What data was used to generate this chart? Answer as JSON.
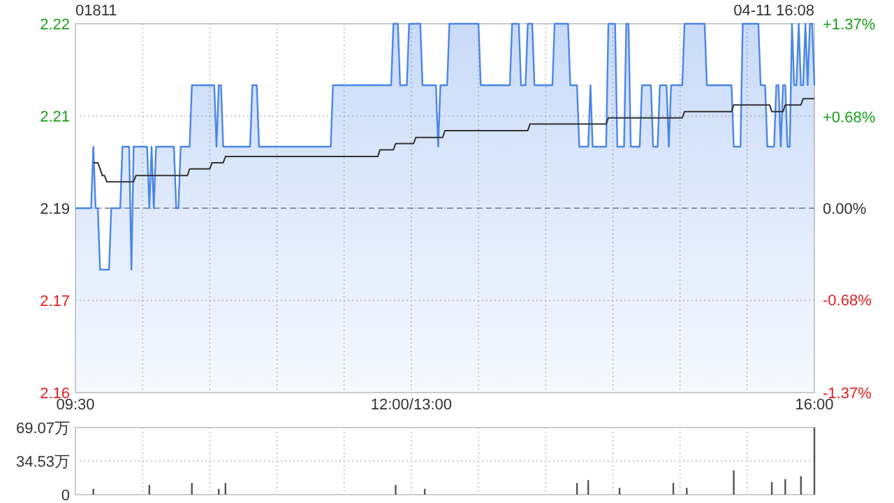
{
  "chart_data": [
    {
      "type": "area",
      "title": "01811",
      "annotations": [
        "04-11 16:08"
      ],
      "categories": [
        "09:30",
        null,
        null,
        null,
        null,
        null,
        null,
        null,
        null,
        null,
        null,
        null,
        null,
        null,
        null,
        null,
        null,
        null,
        null,
        null,
        null,
        null,
        null,
        null,
        null,
        null,
        null,
        null,
        null,
        null,
        null,
        null,
        null,
        null,
        null,
        null,
        null,
        null,
        null,
        null,
        null,
        null,
        null,
        null,
        null,
        null,
        null,
        null,
        null,
        null,
        null,
        null,
        null,
        null,
        null,
        null,
        null,
        null,
        null,
        null,
        null,
        null,
        null,
        null,
        null,
        null,
        null,
        null,
        null,
        null,
        null,
        null,
        null,
        null,
        null,
        null,
        null,
        null,
        null,
        null,
        null,
        null,
        null,
        null,
        null,
        null,
        null,
        null,
        null,
        null,
        null,
        null,
        null,
        null,
        null,
        null,
        null,
        null,
        null,
        null,
        null,
        null,
        null,
        null,
        null,
        null,
        null,
        null,
        null,
        null,
        null,
        null,
        null,
        null,
        null,
        null,
        null,
        null,
        null,
        null,
        null,
        null,
        null,
        null,
        null,
        null,
        null,
        null,
        null,
        null,
        null,
        null,
        null,
        null,
        null,
        null,
        null,
        null,
        null,
        null,
        null,
        null,
        null,
        null,
        null,
        null,
        null,
        null,
        null,
        null,
        "12:00/13:00",
        null,
        null,
        null,
        null,
        null,
        null,
        null,
        null,
        null,
        null,
        null,
        null,
        null,
        null,
        null,
        null,
        null,
        null,
        null,
        null,
        null,
        null,
        null,
        null,
        null,
        null,
        null,
        null,
        null,
        null,
        null,
        null,
        null,
        null,
        null,
        null,
        null,
        null,
        null,
        null,
        null,
        null,
        null,
        null,
        null,
        null,
        null,
        null,
        null,
        null,
        null,
        null,
        null,
        null,
        null,
        null,
        null,
        null,
        null,
        null,
        null,
        null,
        null,
        null,
        null,
        null,
        null,
        null,
        null,
        null,
        null,
        null,
        null,
        null,
        null,
        null,
        null,
        null,
        null,
        null,
        null,
        null,
        null,
        null,
        null,
        null,
        null,
        null,
        null,
        null,
        null,
        null,
        null,
        null,
        null,
        null,
        null,
        null,
        null,
        null,
        null,
        null,
        null,
        null,
        null,
        null,
        null,
        null,
        null,
        null,
        null,
        null,
        null,
        null,
        null,
        null,
        null,
        null,
        null,
        null,
        null,
        null,
        null,
        null,
        null,
        null,
        null,
        null,
        null,
        null,
        null,
        null,
        null,
        null,
        null,
        null,
        null,
        null,
        null,
        null,
        null,
        null,
        null,
        null,
        null,
        null,
        null,
        null,
        null,
        null,
        null,
        null,
        null,
        null,
        null,
        null,
        null,
        null,
        null,
        null,
        null,
        null,
        null,
        null,
        null,
        null,
        null,
        null,
        null,
        null,
        null,
        null,
        null,
        null,
        null,
        null,
        null,
        null,
        null,
        "16:00"
      ],
      "ylim": [
        2.16,
        2.22
      ],
      "yticks": [
        2.22,
        {
          "value": 2.205,
          "label": "2.21"
        },
        2.19,
        {
          "value": 2.175,
          "label": "2.17"
        },
        2.16
      ],
      "y2lim": [
        -1.37,
        1.37
      ],
      "y2ticks": [
        {
          "value": 1.37,
          "label": "+1.37%"
        },
        {
          "value": 0.68,
          "label": "+0.68%"
        },
        {
          "value": 0,
          "label": "0.00%"
        },
        {
          "value": -0.68,
          "label": "-0.68%"
        },
        {
          "value": -1.37,
          "label": "-1.37%"
        }
      ],
      "grid": true,
      "ref_lines": [
        {
          "axis": "y",
          "value": 2.19,
          "line_style": "dashed",
          "color": "#999999"
        }
      ],
      "series": [
        {
          "color": "#4a86e8",
          "values": [
            2.19,
            2.19,
            2.19,
            2.19,
            2.19,
            2.19,
            2.19,
            2.19,
            2.2,
            2.19,
            2.19,
            2.18,
            2.18,
            2.18,
            2.18,
            2.18,
            2.19,
            2.19,
            2.19,
            2.19,
            2.19,
            2.2,
            2.2,
            2.2,
            2.2,
            2.18,
            2.2,
            2.2,
            2.2,
            2.2,
            2.2,
            2.2,
            2.2,
            2.19,
            2.2,
            2.19,
            2.2,
            2.2,
            2.2,
            2.2,
            2.2,
            2.2,
            2.2,
            2.2,
            2.2,
            2.19,
            2.19,
            2.2,
            2.2,
            2.2,
            2.2,
            2.2,
            2.21,
            2.21,
            2.21,
            2.21,
            2.21,
            2.21,
            2.21,
            2.21,
            2.21,
            2.21,
            2.21,
            2.2,
            2.21,
            2.21,
            2.2,
            2.2,
            2.2,
            2.2,
            2.2,
            2.2,
            2.2,
            2.2,
            2.2,
            2.2,
            2.2,
            2.2,
            2.2,
            2.21,
            2.21,
            2.21,
            2.2,
            2.2,
            2.2,
            2.2,
            2.2,
            2.2,
            2.2,
            2.2,
            2.2,
            2.2,
            2.2,
            2.2,
            2.2,
            2.2,
            2.2,
            2.2,
            2.2,
            2.2,
            2.2,
            2.2,
            2.2,
            2.2,
            2.2,
            2.2,
            2.2,
            2.2,
            2.2,
            2.2,
            2.2,
            2.2,
            2.2,
            2.2,
            2.2,
            2.21,
            2.21,
            2.21,
            2.21,
            2.21,
            2.21,
            2.21,
            2.21,
            2.21,
            2.21,
            2.21,
            2.21,
            2.21,
            2.21,
            2.21,
            2.21,
            2.21,
            2.21,
            2.21,
            2.21,
            2.21,
            2.21,
            2.21,
            2.21,
            2.21,
            2.21,
            2.21,
            2.22,
            2.22,
            2.22,
            2.21,
            2.21,
            2.21,
            2.21,
            2.22,
            2.22,
            2.22,
            2.22,
            2.22,
            2.22,
            2.21,
            2.21,
            2.21,
            2.21,
            2.21,
            2.21,
            2.21,
            2.2,
            2.21,
            2.21,
            2.21,
            2.21,
            2.22,
            2.22,
            2.22,
            2.22,
            2.22,
            2.22,
            2.22,
            2.22,
            2.22,
            2.22,
            2.22,
            2.22,
            2.22,
            2.22,
            2.21,
            2.21,
            2.21,
            2.21,
            2.21,
            2.21,
            2.21,
            2.21,
            2.21,
            2.21,
            2.21,
            2.21,
            2.21,
            2.21,
            2.22,
            2.22,
            2.22,
            2.22,
            2.21,
            2.21,
            2.21,
            2.22,
            2.22,
            2.22,
            2.21,
            2.21,
            2.21,
            2.21,
            2.21,
            2.21,
            2.21,
            2.21,
            2.21,
            2.22,
            2.22,
            2.22,
            2.22,
            2.22,
            2.22,
            2.22,
            2.21,
            2.21,
            2.21,
            2.21,
            2.2,
            2.2,
            2.2,
            2.2,
            2.2,
            2.21,
            2.2,
            2.2,
            2.2,
            2.2,
            2.2,
            2.2,
            2.2,
            2.22,
            2.22,
            2.22,
            2.22,
            2.2,
            2.2,
            2.2,
            2.2,
            2.22,
            2.22,
            2.2,
            2.2,
            2.2,
            2.2,
            2.2,
            2.21,
            2.21,
            2.21,
            2.21,
            2.21,
            2.2,
            2.2,
            2.2,
            2.21,
            2.21,
            2.21,
            2.21,
            2.2,
            2.21,
            2.21,
            2.21,
            2.21,
            2.21,
            2.21,
            2.22,
            2.22,
            2.22,
            2.22,
            2.22,
            2.22,
            2.22,
            2.22,
            2.22,
            2.22,
            2.21,
            2.21,
            2.21,
            2.21,
            2.21,
            2.21,
            2.21,
            2.21,
            2.21,
            2.21,
            2.21,
            2.21,
            2.2,
            2.2,
            2.2,
            2.2,
            2.22,
            2.22,
            2.22,
            2.22,
            2.22,
            2.22,
            2.22,
            2.22,
            2.21,
            2.21,
            2.21,
            2.2,
            2.2,
            2.2,
            2.2,
            2.21,
            2.21,
            2.2,
            2.21,
            2.21,
            2.2,
            2.2,
            2.22,
            2.21,
            2.21,
            2.22,
            2.21,
            2.21,
            2.22,
            2.21,
            2.22,
            2.22,
            2.21
          ]
        },
        {
          "type": "line",
          "color": "#333333",
          "values": [
            null,
            null,
            null,
            null,
            null,
            null,
            null,
            null,
            2.1974,
            2.1974,
            2.1974,
            2.1964,
            2.1953,
            2.1953,
            2.1943,
            2.1943,
            2.1943,
            2.1943,
            2.1943,
            2.1943,
            2.1943,
            2.1943,
            2.1943,
            2.1943,
            2.1943,
            2.1943,
            2.1943,
            2.1953,
            2.1953,
            2.1953,
            2.1953,
            2.1953,
            2.1953,
            2.1953,
            2.1953,
            2.1953,
            2.1953,
            2.1953,
            2.1953,
            2.1953,
            2.1953,
            2.1953,
            2.1953,
            2.1953,
            2.1953,
            2.1953,
            2.1953,
            2.1953,
            2.1953,
            2.1953,
            2.1953,
            2.1964,
            2.1964,
            2.1964,
            2.1964,
            2.1964,
            2.1964,
            2.1964,
            2.1964,
            2.1964,
            2.1964,
            2.1974,
            2.1974,
            2.1974,
            2.1974,
            2.1974,
            2.1974,
            2.1984,
            2.1984,
            2.1984,
            2.1984,
            2.1984,
            2.1984,
            2.1984,
            2.1984,
            2.1984,
            2.1984,
            2.1984,
            2.1984,
            2.1984,
            2.1984,
            2.1984,
            2.1984,
            2.1984,
            2.1984,
            2.1984,
            2.1984,
            2.1984,
            2.1984,
            2.1984,
            2.1984,
            2.1984,
            2.1984,
            2.1984,
            2.1984,
            2.1984,
            2.1984,
            2.1984,
            2.1984,
            2.1984,
            2.1984,
            2.1984,
            2.1984,
            2.1984,
            2.1984,
            2.1984,
            2.1984,
            2.1984,
            2.1984,
            2.1984,
            2.1984,
            2.1984,
            2.1984,
            2.1984,
            2.1984,
            2.1984,
            2.1984,
            2.1984,
            2.1984,
            2.1984,
            2.1984,
            2.1984,
            2.1984,
            2.1984,
            2.1984,
            2.1984,
            2.1984,
            2.1984,
            2.1984,
            2.1984,
            2.1984,
            2.1984,
            2.1984,
            2.1984,
            2.1984,
            2.1984,
            2.1995,
            2.1995,
            2.1995,
            2.1995,
            2.1995,
            2.1995,
            2.1995,
            2.2005,
            2.2005,
            2.2005,
            2.2005,
            2.2005,
            2.2005,
            2.2005,
            2.2005,
            2.2005,
            2.2015,
            2.2015,
            2.2015,
            2.2015,
            2.2015,
            2.2015,
            2.2015,
            2.2015,
            2.2015,
            2.2015,
            2.2015,
            2.2015,
            2.2015,
            2.2026,
            2.2026,
            2.2026,
            2.2026,
            2.2026,
            2.2026,
            2.2026,
            2.2026,
            2.2026,
            2.2026,
            2.2026,
            2.2026,
            2.2026,
            2.2026,
            2.2026,
            2.2026,
            2.2026,
            2.2026,
            2.2026,
            2.2026,
            2.2026,
            2.2026,
            2.2026,
            2.2026,
            2.2026,
            2.2026,
            2.2026,
            2.2026,
            2.2026,
            2.2026,
            2.2026,
            2.2026,
            2.2026,
            2.2026,
            2.2026,
            2.2026,
            2.2026,
            2.2026,
            2.2037,
            2.2037,
            2.2037,
            2.2037,
            2.2037,
            2.2037,
            2.2037,
            2.2037,
            2.2037,
            2.2037,
            2.2037,
            2.2037,
            2.2037,
            2.2037,
            2.2037,
            2.2037,
            2.2037,
            2.2037,
            2.2037,
            2.2037,
            2.2037,
            2.2037,
            2.2037,
            2.2037,
            2.2037,
            2.2037,
            2.2037,
            2.2037,
            2.2037,
            2.2037,
            2.2037,
            2.2037,
            2.2037,
            2.2037,
            2.2037,
            2.2047,
            2.2047,
            2.2047,
            2.2047,
            2.2047,
            2.2047,
            2.2047,
            2.2047,
            2.2047,
            2.2047,
            2.2047,
            2.2047,
            2.2047,
            2.2047,
            2.2047,
            2.2047,
            2.2047,
            2.2047,
            2.2047,
            2.2047,
            2.2047,
            2.2047,
            2.2047,
            2.2047,
            2.2047,
            2.2047,
            2.2047,
            2.2047,
            2.2047,
            2.2047,
            2.2047,
            2.2047,
            2.2047,
            2.2047,
            2.2057,
            2.2057,
            2.2057,
            2.2057,
            2.2057,
            2.2057,
            2.2057,
            2.2057,
            2.2057,
            2.2057,
            2.2057,
            2.2057,
            2.2057,
            2.2057,
            2.2057,
            2.2057,
            2.2057,
            2.2057,
            2.2057,
            2.2057,
            2.2057,
            2.2057,
            2.2068,
            2.2068,
            2.2068,
            2.2068,
            2.2068,
            2.2068,
            2.2068,
            2.2068,
            2.2068,
            2.2068,
            2.2068,
            2.2068,
            2.2068,
            2.2068,
            2.2068,
            2.2068,
            2.2068,
            2.2057,
            2.2057,
            2.2057,
            2.2057,
            2.2057,
            2.2057,
            2.2068,
            2.2068,
            2.2068,
            2.2068,
            2.2068,
            2.2068,
            2.2068,
            2.2068,
            2.2078,
            2.2078,
            2.2078,
            2.2078,
            2.2078,
            2.2078
          ]
        }
      ]
    },
    {
      "type": "bar",
      "tick_labels": "y",
      "grid": true,
      "categories": [
        null,
        null,
        null,
        null,
        null,
        null,
        null,
        null,
        null,
        null,
        null,
        null,
        null,
        null,
        null,
        null,
        null,
        null,
        null,
        null,
        null,
        null,
        null,
        null,
        null,
        null,
        null,
        null,
        null,
        null,
        null,
        null,
        null,
        null,
        null,
        null,
        null,
        null,
        null,
        null,
        null,
        null,
        null,
        null,
        null,
        null,
        null,
        null,
        null,
        null,
        null,
        null,
        null,
        null,
        null,
        null,
        null,
        null,
        null,
        null,
        null,
        null,
        null,
        null,
        null,
        null,
        null,
        null,
        null,
        null,
        null,
        null,
        null,
        null,
        null,
        null,
        null,
        null,
        null,
        null,
        null,
        null,
        null,
        null,
        null,
        null,
        null,
        null,
        null,
        null,
        null,
        null,
        null,
        null,
        null,
        null,
        null,
        null,
        null,
        null,
        null,
        null,
        null,
        null,
        null,
        null,
        null,
        null,
        null,
        null,
        null,
        null,
        null,
        null,
        null,
        null,
        null,
        null,
        null,
        null,
        null,
        null,
        null,
        null,
        null,
        null,
        null,
        null,
        null,
        null,
        null,
        null,
        null,
        null,
        null,
        null,
        null,
        null,
        null,
        null,
        null,
        null,
        null,
        null,
        null,
        null,
        null,
        null,
        null,
        null,
        null,
        null,
        null,
        null,
        null,
        null,
        null,
        null,
        null,
        null,
        null,
        null,
        null,
        null,
        null,
        null,
        null,
        null,
        null,
        null,
        null,
        null,
        null,
        null,
        null,
        null,
        null,
        null,
        null,
        null,
        null,
        null,
        null,
        null,
        null,
        null,
        null,
        null,
        null,
        null,
        null,
        null,
        null,
        null,
        null,
        null,
        null,
        null,
        null,
        null,
        null,
        null,
        null,
        null,
        null,
        null,
        null,
        null,
        null,
        null,
        null,
        null,
        null,
        null,
        null,
        null,
        null,
        null,
        null,
        null,
        null,
        null,
        null,
        null,
        null,
        null,
        null,
        null,
        null,
        null,
        null,
        null,
        null,
        null,
        null,
        null,
        null,
        null,
        null,
        null,
        null,
        null,
        null,
        null,
        null,
        null,
        null,
        null,
        null,
        null,
        null,
        null,
        null,
        null,
        null,
        null,
        null,
        null,
        null,
        null,
        null,
        null,
        null,
        null,
        null,
        null,
        null,
        null,
        null,
        null,
        null,
        null,
        null,
        null,
        null,
        null,
        null,
        null,
        null,
        null,
        null,
        null,
        null,
        null,
        null,
        null,
        null,
        null,
        null,
        null,
        null,
        null,
        null,
        null,
        null,
        null,
        null,
        null,
        null,
        null,
        null,
        null,
        null,
        null,
        null,
        null,
        null,
        null,
        null,
        null,
        null,
        null,
        null,
        null,
        null,
        null,
        null,
        null,
        null,
        null,
        null,
        null,
        null,
        null,
        null,
        null,
        null,
        null,
        null,
        null,
        null
      ],
      "ylim": [
        0,
        69.07
      ],
      "yticks": [
        {
          "value": 69.07,
          "label": "69.07万"
        },
        {
          "value": 34.53,
          "label": "34.53万"
        },
        0
      ],
      "series": [
        {
          "color": "#555555",
          "values": [
            null,
            null,
            null,
            null,
            null,
            null,
            null,
            null,
            6,
            null,
            null,
            null,
            null,
            null,
            null,
            null,
            null,
            null,
            null,
            null,
            null,
            null,
            null,
            null,
            null,
            null,
            null,
            null,
            null,
            null,
            null,
            null,
            null,
            10,
            null,
            null,
            null,
            null,
            null,
            null,
            null,
            null,
            null,
            null,
            null,
            null,
            null,
            null,
            null,
            null,
            null,
            null,
            12,
            null,
            null,
            null,
            null,
            null,
            null,
            null,
            null,
            null,
            null,
            null,
            6,
            null,
            null,
            12,
            null,
            null,
            null,
            null,
            null,
            null,
            null,
            null,
            null,
            null,
            null,
            null,
            null,
            null,
            null,
            null,
            null,
            null,
            null,
            null,
            null,
            null,
            null,
            null,
            null,
            null,
            null,
            null,
            null,
            null,
            null,
            null,
            null,
            null,
            null,
            null,
            null,
            null,
            null,
            null,
            null,
            null,
            null,
            null,
            null,
            null,
            null,
            null,
            null,
            null,
            null,
            null,
            null,
            null,
            null,
            null,
            null,
            null,
            null,
            null,
            null,
            null,
            null,
            null,
            null,
            null,
            null,
            null,
            null,
            null,
            null,
            null,
            null,
            null,
            null,
            10,
            null,
            null,
            null,
            null,
            null,
            null,
            null,
            null,
            null,
            null,
            null,
            null,
            6,
            null,
            null,
            null,
            null,
            null,
            null,
            null,
            null,
            null,
            null,
            null,
            null,
            null,
            null,
            null,
            null,
            null,
            null,
            null,
            null,
            null,
            null,
            null,
            null,
            null,
            null,
            null,
            null,
            null,
            null,
            null,
            null,
            null,
            null,
            null,
            null,
            null,
            null,
            null,
            null,
            null,
            null,
            null,
            null,
            null,
            null,
            null,
            null,
            null,
            null,
            null,
            null,
            null,
            null,
            null,
            null,
            null,
            null,
            null,
            null,
            null,
            null,
            null,
            null,
            null,
            null,
            null,
            12,
            null,
            null,
            null,
            null,
            15,
            null,
            null,
            null,
            null,
            null,
            null,
            null,
            null,
            null,
            null,
            null,
            null,
            null,
            7,
            null,
            null,
            null,
            null,
            null,
            null,
            null,
            null,
            null,
            null,
            null,
            null,
            null,
            null,
            null,
            null,
            null,
            null,
            null,
            null,
            null,
            null,
            null,
            12,
            null,
            null,
            null,
            null,
            null,
            7,
            null,
            null,
            null,
            null,
            null,
            null,
            null,
            null,
            null,
            null,
            null,
            null,
            null,
            null,
            null,
            null,
            null,
            null,
            null,
            null,
            25,
            null,
            null,
            null,
            null,
            null,
            null,
            null,
            null,
            null,
            null,
            null,
            null,
            null,
            null,
            null,
            null,
            13,
            null,
            null,
            null,
            null,
            null,
            16,
            null,
            null,
            null,
            null,
            null,
            null,
            19,
            null,
            null,
            null,
            null,
            null,
            69
          ]
        }
      ]
    }
  ]
}
